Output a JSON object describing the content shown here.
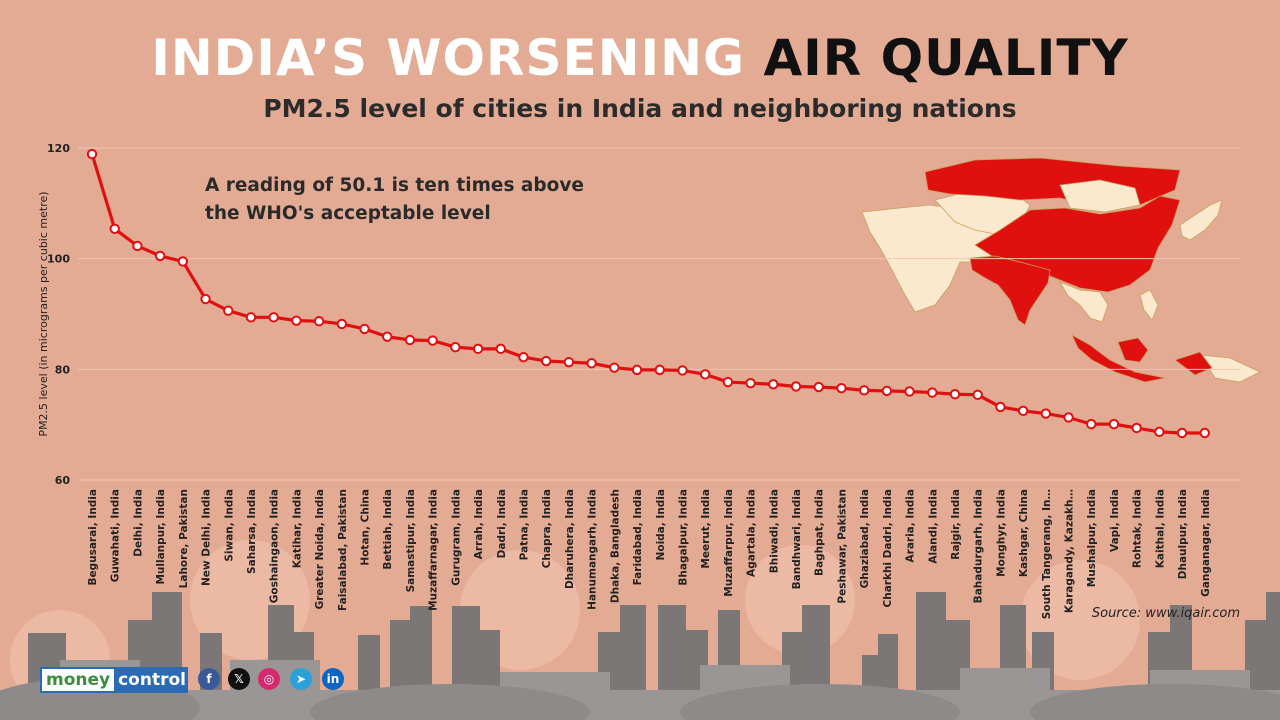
{
  "header": {
    "title_part1": "INDIA’S WORSENING",
    "title_part2": "AIR QUALITY",
    "subtitle": "PM2.5 level of cities in India and neighboring nations"
  },
  "annotation": {
    "line1": "A reading of 50.1 is ten times above",
    "line2": "the WHO's acceptable level"
  },
  "source": "Source: www.iqair.com",
  "brand": {
    "logo_part1": "money",
    "logo_part2": "control"
  },
  "colors": {
    "background": "#e4ab94",
    "line": "#e01010",
    "map_red": "#e01010",
    "map_light": "#fbe9cf",
    "skyline": "#7a7676"
  },
  "social_icons": [
    "facebook-icon",
    "x-icon",
    "instagram-icon",
    "telegram-icon",
    "linkedin-icon"
  ],
  "chart_data": {
    "type": "line",
    "title": "PM2.5 level of cities in India and neighboring nations",
    "xlabel": "",
    "ylabel": "PM2.5 level (in micrograms per cubic metre)",
    "ylim": [
      60,
      120
    ],
    "yticks": [
      60,
      80,
      100,
      120
    ],
    "grid": true,
    "categories": [
      "Begusarai, India",
      "Guwahati, India",
      "Delhi, India",
      "Mullanpur, India",
      "Lahore, Pakistan",
      "New Delhi, India",
      "Siwan, India",
      "Saharsa, India",
      "Goshaingaon, India",
      "Katihar, India",
      "Greater Noida, India",
      "Faisalabad, Pakistan",
      "Hotan, China",
      "Bettiah, India",
      "Samastipur, India",
      "Muzaffarnagar, India",
      "Gurugram, India",
      "Arrah, India",
      "Dadri, India",
      "Patna, India",
      "Chapra, India",
      "Dharuhera, India",
      "Hanumangarh, India",
      "Dhaka, Bangladesh",
      "Faridabad, India",
      "Noida, India",
      "Bhagalpur, India",
      "Meerut, India",
      "Muzaffarpur, India",
      "Agartala, India",
      "Bhiwadi, India",
      "Bandhwari, India",
      "Baghpat, India",
      "Peshawar, Pakistan",
      "Ghaziabad, India",
      "Charkhi Dadri, India",
      "Araria, India",
      "Alandi, India",
      "Rajgir, India",
      "Bahadurgarh, India",
      "Monghyr, India",
      "Kashgar, China",
      "South Tangerang, In…",
      "Karagandy, Kazakh…",
      "Mushalpur, India",
      "Vapi, India",
      "Rohtak, India",
      "Kaithal, India",
      "Dhaulpur, India",
      "Ganganagar, India"
    ],
    "values": [
      118.9,
      105.4,
      102.3,
      100.5,
      99.5,
      92.7,
      90.6,
      89.4,
      89.4,
      88.8,
      88.7,
      88.2,
      87.3,
      85.9,
      85.3,
      85.2,
      84.0,
      83.7,
      83.7,
      82.2,
      81.5,
      81.3,
      81.1,
      80.3,
      79.9,
      79.9,
      79.8,
      79.1,
      77.7,
      77.5,
      77.3,
      76.9,
      76.8,
      76.6,
      76.2,
      76.1,
      76.0,
      75.8,
      75.5,
      75.4,
      73.2,
      72.5,
      72.0,
      71.3,
      70.1,
      70.1,
      69.4,
      68.7,
      68.5,
      68.5
    ]
  }
}
